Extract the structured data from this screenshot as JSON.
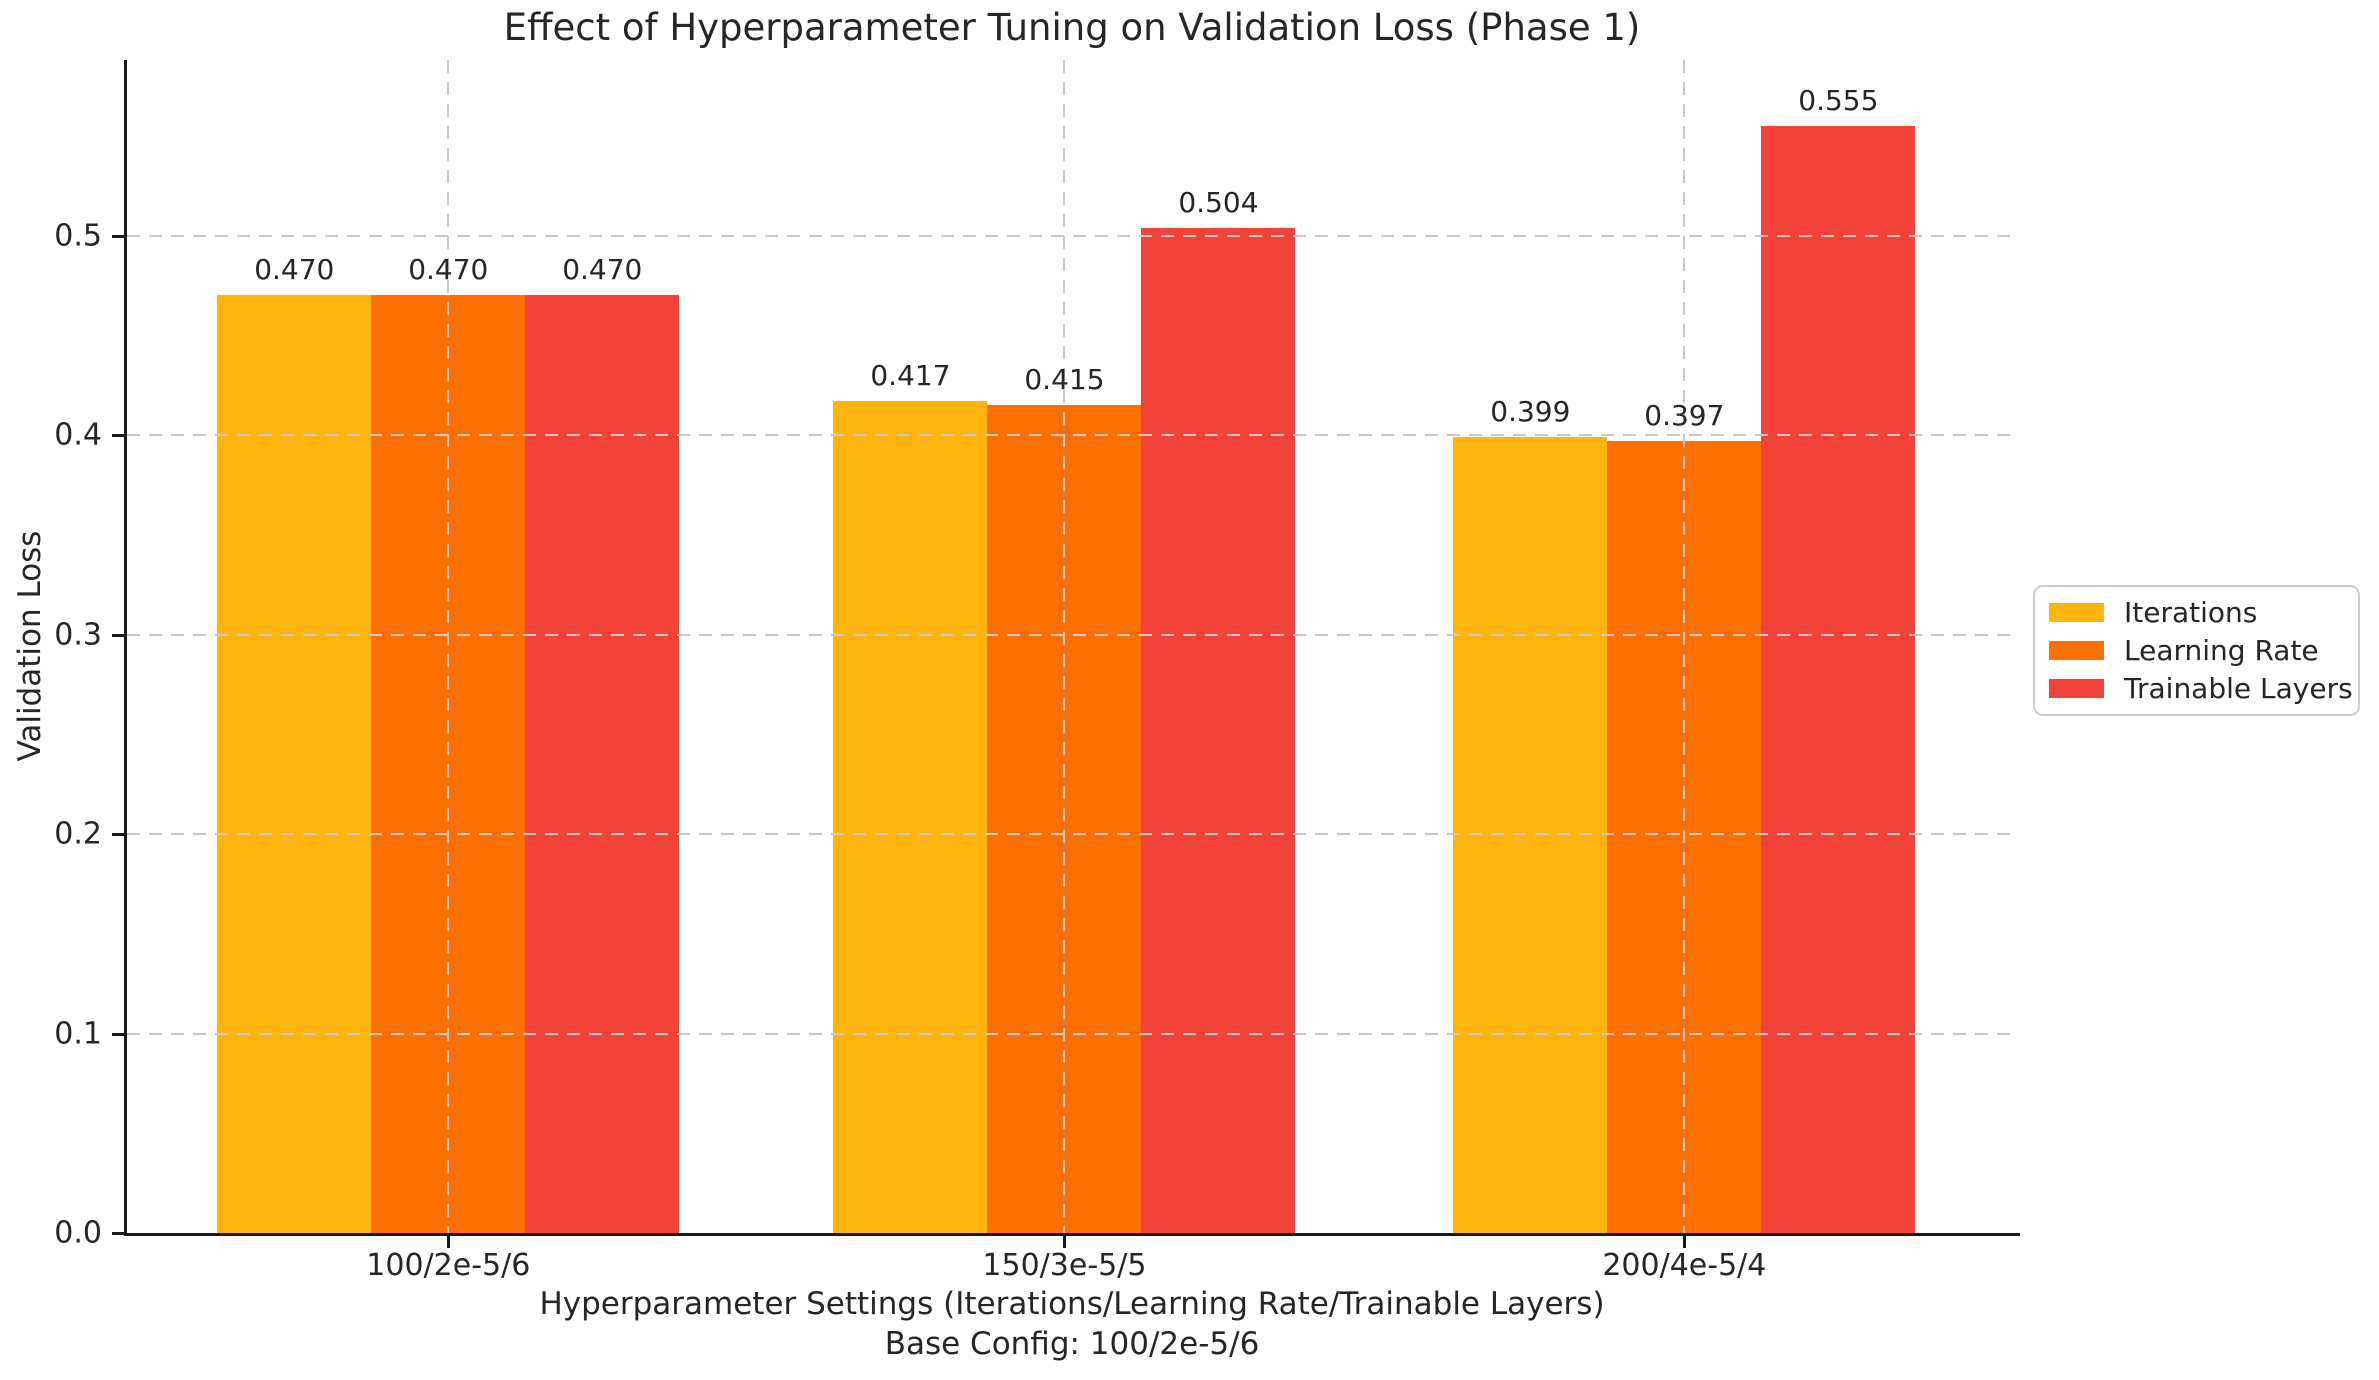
{
  "chart_data": {
    "type": "bar",
    "title": "Effect of Hyperparameter Tuning on Validation Loss (Phase 1)",
    "xlabel": "Hyperparameter Settings (Iterations/Learning Rate/Trainable Layers)",
    "xlabel_line2": "Base Config: 100/2e-5/6",
    "ylabel": "Validation Loss",
    "categories": [
      "100/2e-5/6",
      "150/3e-5/5",
      "200/4e-5/4"
    ],
    "series": [
      {
        "name": "Iterations",
        "color": "#FFB40D",
        "values": [
          0.47,
          0.417,
          0.399
        ]
      },
      {
        "name": "Learning Rate",
        "color": "#FC6F03",
        "values": [
          0.47,
          0.415,
          0.397
        ]
      },
      {
        "name": "Trainable Layers",
        "color": "#F2423A",
        "values": [
          0.47,
          0.504,
          0.555
        ]
      }
    ],
    "yticks": [
      0.0,
      0.1,
      0.2,
      0.3,
      0.4,
      0.5
    ],
    "ylim": [
      0,
      0.588
    ],
    "grid": "dashed gridlines on both axes, drawn over bars",
    "legend_position": "center-right, outside plot",
    "value_label_decimals": 3
  },
  "colors": {
    "text": "#262626",
    "grid": "#c8c8c8",
    "spine": "#1a1a1a",
    "legend_border": "#cccccc",
    "background": "#ffffff"
  }
}
